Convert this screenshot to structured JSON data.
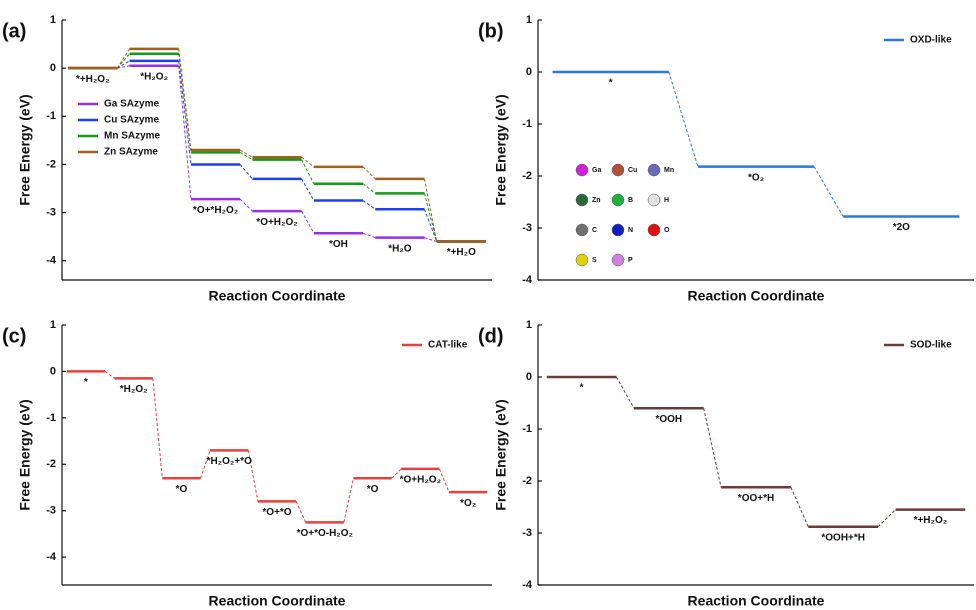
{
  "chart_data": [
    {
      "type": "step",
      "panel_label": "(a)",
      "x_label": "Reaction Coordinate",
      "y_label": "Free Energy (eV)",
      "categories": [
        "*+H₂O₂",
        "*H₂O₂",
        "*O+*H₂O₂",
        "*O+H₂O₂",
        "*OH",
        "*H₂O",
        "*+H₂O"
      ],
      "series": [
        {
          "name": "Ga SAzyme",
          "color": "#9b30e0",
          "values": [
            0,
            0.05,
            -2.72,
            -2.97,
            -3.43,
            -3.52,
            -3.6
          ]
        },
        {
          "name": "Cu SAzyme",
          "color": "#1c3ff0",
          "values": [
            0,
            0.15,
            -2.0,
            -2.3,
            -2.75,
            -2.93,
            -3.6
          ]
        },
        {
          "name": "Mn SAzyme",
          "color": "#159a15",
          "values": [
            0,
            0.3,
            -1.75,
            -1.9,
            -2.4,
            -2.6,
            -3.6
          ]
        },
        {
          "name": "Zn SAzyme",
          "color": "#a2601c",
          "values": [
            0,
            0.4,
            -1.7,
            -1.85,
            -2.05,
            -2.3,
            -3.6
          ]
        }
      ],
      "ylim": [
        -4.4,
        1
      ],
      "yticks": [
        1,
        0,
        -1,
        -2,
        -3,
        -4
      ],
      "legend": "left"
    },
    {
      "type": "step",
      "panel_label": "(b)",
      "x_label": "Reaction Coordinate",
      "y_label": "Free Energy (eV)",
      "categories": [
        "*",
        "*O₂",
        "*2O"
      ],
      "series": [
        {
          "name": "OXD-like",
          "color": "#2a78e0",
          "values": [
            0,
            -1.82,
            -2.78
          ]
        }
      ],
      "ylim": [
        -4,
        1
      ],
      "yticks": [
        1,
        0,
        -1,
        -2,
        -3,
        -4
      ],
      "legend": "top-right",
      "atom_legend": [
        {
          "name": "Ga",
          "color": "#d020d8"
        },
        {
          "name": "Cu",
          "color": "#b0503a"
        },
        {
          "name": "Mn",
          "color": "#6a6ab8"
        },
        {
          "name": "Zn",
          "color": "#2a6a3a"
        },
        {
          "name": "B",
          "color": "#20b040"
        },
        {
          "name": "H",
          "color": "#e0e0e0"
        },
        {
          "name": "C",
          "color": "#707070"
        },
        {
          "name": "N",
          "color": "#1020c0"
        },
        {
          "name": "O",
          "color": "#e01010"
        },
        {
          "name": "S",
          "color": "#e0d010"
        },
        {
          "name": "P",
          "color": "#d080e0"
        }
      ]
    },
    {
      "type": "step",
      "panel_label": "(c)",
      "x_label": "Reaction Coordinate",
      "y_label": "Free Energy (eV)",
      "categories": [
        "*",
        "*H₂O₂",
        "*O",
        "*H₂O₂+*O",
        "*O+*O",
        "*O+*O-H₂O₂",
        "*O",
        "*O+H₂O₂",
        "*O₂"
      ],
      "series": [
        {
          "name": "CAT-like",
          "color": "#e8403a",
          "values": [
            0,
            -0.15,
            -2.3,
            -1.7,
            -2.8,
            -3.25,
            -2.3,
            -2.1,
            -2.6
          ]
        }
      ],
      "ylim": [
        -4.6,
        1
      ],
      "yticks": [
        1,
        0,
        -1,
        -2,
        -3,
        -4
      ],
      "legend": "top-right"
    },
    {
      "type": "step",
      "panel_label": "(d)",
      "x_label": "Reaction Coordinate",
      "y_label": "Free Energy (eV)",
      "categories": [
        "*",
        "*OOH",
        "*OO+*H",
        "*OOH+*H",
        "*+H₂O₂"
      ],
      "series": [
        {
          "name": "SOD-like",
          "color": "#6b3a3a",
          "values": [
            0,
            -0.6,
            -2.12,
            -2.88,
            -2.55
          ]
        }
      ],
      "ylim": [
        -4,
        1
      ],
      "yticks": [
        1,
        0,
        -1,
        -2,
        -3,
        -4
      ],
      "legend": "top-right"
    }
  ]
}
